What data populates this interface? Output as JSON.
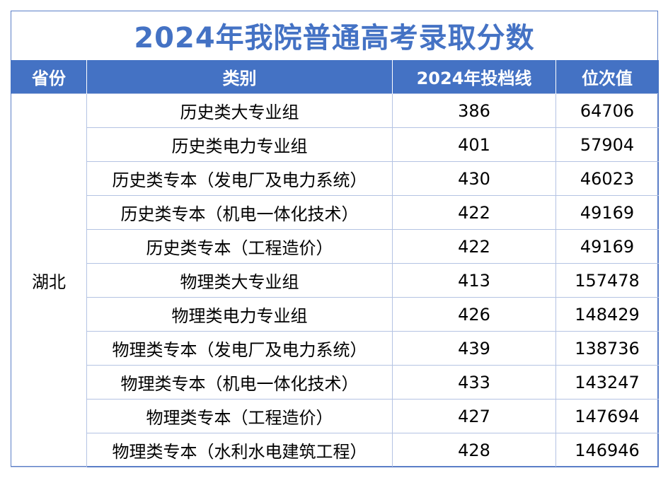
{
  "title": "2024年我院普通高考录取分数",
  "colors": {
    "accent": "#4472c4",
    "header_text": "#ffffff",
    "border": "#b4c3e3"
  },
  "table": {
    "headers": [
      "省份",
      "类别",
      "2024年投档线",
      "位次值"
    ],
    "province": "湖北",
    "rows": [
      {
        "category": "历史类大专业组",
        "score": "386",
        "rank": "64706"
      },
      {
        "category": "历史类电力专业组",
        "score": "401",
        "rank": "57904"
      },
      {
        "category": "历史类专本（发电厂及电力系统）",
        "score": "430",
        "rank": "46023"
      },
      {
        "category": "历史类专本（机电一体化技术）",
        "score": "422",
        "rank": "49169"
      },
      {
        "category": "历史类专本（工程造价）",
        "score": "422",
        "rank": "49169"
      },
      {
        "category": "物理类大专业组",
        "score": "413",
        "rank": "157478"
      },
      {
        "category": "物理类电力专业组",
        "score": "426",
        "rank": "148429"
      },
      {
        "category": "物理类专本（发电厂及电力系统）",
        "score": "439",
        "rank": "138736"
      },
      {
        "category": "物理类专本（机电一体化技术）",
        "score": "433",
        "rank": "143247"
      },
      {
        "category": "物理类专本（工程造价）",
        "score": "427",
        "rank": "147694"
      },
      {
        "category": "物理类专本（水利水电建筑工程）",
        "score": "428",
        "rank": "146946"
      }
    ]
  }
}
